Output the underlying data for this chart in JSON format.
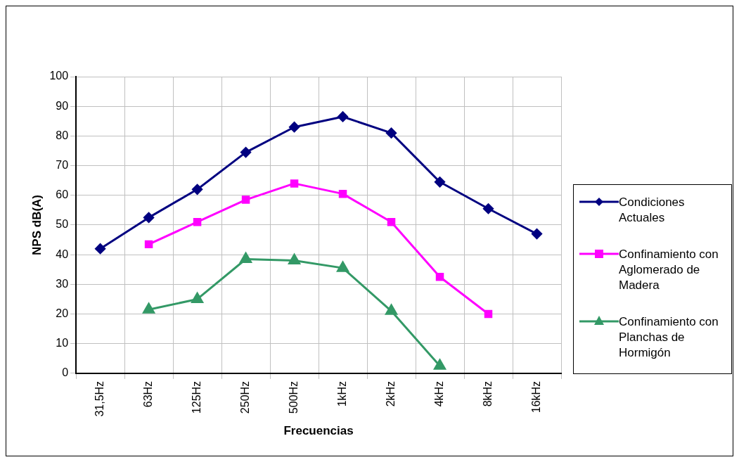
{
  "chart_data": {
    "type": "line",
    "xlabel": "Frecuencias",
    "ylabel": "NPS dB(A)",
    "categories": [
      "31,5Hz",
      "63Hz",
      "125Hz",
      "250Hz",
      "500Hz",
      "1kHz",
      "2kHz",
      "4kHz",
      "8kHz",
      "16kHz"
    ],
    "series": [
      {
        "name": "Condiciones Actuales",
        "color": "#000080",
        "marker": "diamond",
        "values": [
          42,
          52.5,
          62,
          74.5,
          83,
          86.5,
          81,
          64.5,
          55.5,
          47
        ]
      },
      {
        "name": "Confinamiento con Aglomerado de Madera",
        "color": "#ff00ff",
        "marker": "square",
        "values": [
          null,
          43.5,
          51,
          58.5,
          64,
          60.5,
          51,
          32.5,
          20,
          null
        ]
      },
      {
        "name": "Confinamiento con Planchas de Hormigón",
        "color": "#339966",
        "marker": "triangle",
        "values": [
          null,
          21.5,
          25,
          38.5,
          38,
          35.5,
          21,
          2.5,
          null,
          null
        ]
      }
    ],
    "ylim": [
      0,
      100
    ],
    "yticks": [
      0,
      10,
      20,
      30,
      40,
      50,
      60,
      70,
      80,
      90,
      100
    ],
    "grid": true,
    "legend": "right"
  }
}
